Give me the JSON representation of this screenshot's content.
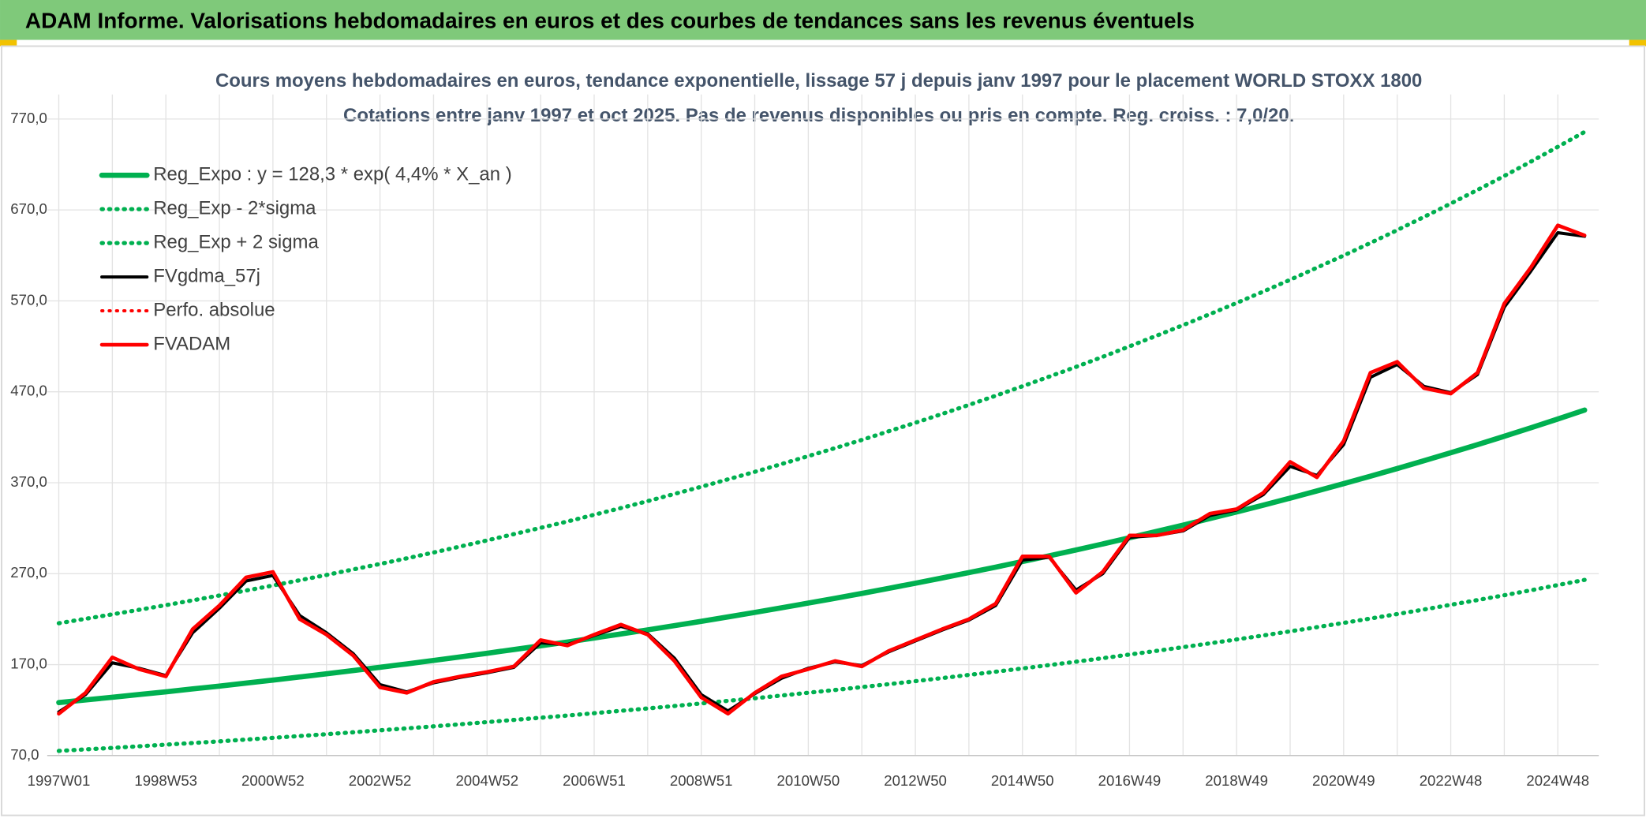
{
  "header": {
    "title": "ADAM Informe. Valorisations hebdomadaires en euros et des courbes de tendances sans les revenus éventuels"
  },
  "chart_data": {
    "type": "line",
    "title": "Cours moyens hebdomadaires en euros, tendance exponentielle, lissage 57 j depuis janv 1997 pour le placement WORLD STOXX 1800",
    "subtitle": "Cotations entre janv 1997 et oct 2025. Pas de revenus disponibles ou pris en compte. Reg. croiss. : 7,0/20.",
    "categories": [
      "1997W01",
      null,
      null,
      null,
      "1998W53",
      null,
      null,
      null,
      "2000W52",
      null,
      null,
      null,
      "2002W52",
      null,
      null,
      null,
      "2004W52",
      null,
      null,
      null,
      "2006W51",
      null,
      null,
      null,
      "2008W51",
      null,
      null,
      null,
      "2010W50",
      null,
      null,
      null,
      "2012W50",
      null,
      null,
      null,
      "2014W50",
      null,
      null,
      null,
      "2016W49",
      null,
      null,
      null,
      "2018W49",
      null,
      null,
      null,
      "2020W49",
      null,
      null,
      null,
      "2022W48",
      null,
      null,
      null,
      "2024W48",
      null
    ],
    "ylim": [
      70,
      797
    ],
    "yticks": [
      {
        "value": 70,
        "label": "70,0"
      },
      {
        "value": 170,
        "label": "170,0"
      },
      {
        "value": 270,
        "label": "270,0"
      },
      {
        "value": 370,
        "label": "370,0"
      },
      {
        "value": 470,
        "label": "470,0"
      },
      {
        "value": 570,
        "label": "570,0"
      },
      {
        "value": 670,
        "label": "670,0"
      },
      {
        "value": 770,
        "label": "770,0"
      }
    ],
    "grid": true,
    "legend": "upper left",
    "series": [
      {
        "name": "Reg_Expo : y = 128,3 * exp( 4,4% *  X_an )",
        "color": "#00b050",
        "dash": false,
        "values": [
          128.3,
          131.2,
          134.1,
          137.1,
          140.1,
          143.3,
          146.4,
          149.7,
          153.0,
          156.4,
          159.9,
          163.5,
          167.1,
          170.8,
          174.6,
          178.5,
          182.5,
          186.6,
          190.7,
          194.9,
          199.3,
          203.7,
          208.2,
          212.9,
          217.6,
          222.5,
          227.4,
          232.5,
          237.7,
          242.9,
          248.3,
          253.9,
          259.5,
          265.3,
          271.2,
          277.2,
          283.4,
          289.7,
          296.1,
          302.7,
          309.5,
          316.4,
          323.4,
          330.6,
          337.9,
          345.4,
          353.1,
          361.0,
          369.0,
          377.2,
          385.6,
          394.2,
          403.0,
          411.9,
          421.1,
          430.5,
          440.1,
          449.9
        ]
      },
      {
        "name": "Reg_Exp - 2*sigma",
        "color": "#00b050",
        "dash": true,
        "values": [
          75.1,
          76.8,
          78.4,
          80.2,
          82.0,
          83.8,
          85.6,
          87.6,
          89.5,
          91.5,
          93.5,
          95.6,
          97.8,
          99.9,
          102.1,
          104.4,
          106.8,
          109.2,
          111.6,
          114.0,
          116.6,
          119.2,
          121.8,
          124.5,
          127.3,
          130.2,
          133.0,
          136.0,
          139.1,
          142.1,
          145.3,
          148.5,
          151.8,
          155.2,
          158.7,
          162.2,
          165.8,
          169.5,
          173.2,
          177.1,
          181.1,
          185.1,
          189.2,
          193.4,
          197.7,
          202.1,
          206.6,
          211.2,
          215.9,
          220.7,
          225.6,
          230.6,
          235.8,
          241.0,
          246.3,
          251.8,
          257.5,
          263.2
        ]
      },
      {
        "name": "Reg_Exp + 2 sigma",
        "color": "#00b050",
        "dash": true,
        "values": [
          215.5,
          220.4,
          225.3,
          230.3,
          235.4,
          240.7,
          246.0,
          251.5,
          257.0,
          262.8,
          268.6,
          274.7,
          280.7,
          286.9,
          293.3,
          299.9,
          306.6,
          313.5,
          320.4,
          327.4,
          334.8,
          342.2,
          349.8,
          357.7,
          365.6,
          373.8,
          382.0,
          390.6,
          399.3,
          408.1,
          417.1,
          426.6,
          436.0,
          445.7,
          455.6,
          465.7,
          476.1,
          486.7,
          497.4,
          508.5,
          520.0,
          531.6,
          543.3,
          555.4,
          567.7,
          580.3,
          593.2,
          606.5,
          619.9,
          633.7,
          647.8,
          662.3,
          677.0,
          692.0,
          707.4,
          723.2,
          739.4,
          755.8
        ]
      },
      {
        "name": "FVgdma_57j",
        "color": "#000000",
        "dash": false,
        "values": [
          118,
          137,
          172,
          166,
          158,
          205,
          232,
          262,
          268,
          224,
          205,
          182,
          148,
          140,
          150,
          156,
          161,
          167,
          194,
          192,
          202,
          212,
          204,
          177,
          137,
          119,
          138,
          155,
          166,
          173,
          169,
          184,
          196,
          208,
          219,
          235,
          285,
          288,
          252,
          270,
          310,
          312,
          317,
          334,
          340,
          357,
          388,
          378,
          412,
          486,
          500,
          476,
          469,
          489,
          563,
          603,
          645,
          641
        ]
      },
      {
        "name": "Perfo. absolue",
        "color": "#ff0000",
        "dash": true,
        "values": [
          null,
          null,
          null,
          null,
          null,
          null,
          null,
          null,
          null,
          null,
          null,
          null,
          null,
          null,
          null,
          null,
          null,
          null,
          null,
          null,
          null,
          null,
          null,
          null,
          null,
          null,
          null,
          null,
          null,
          null,
          null,
          null,
          null,
          null,
          null,
          null,
          null,
          null,
          null,
          null,
          null,
          null,
          null,
          null,
          null,
          null,
          null,
          null,
          null,
          null,
          null,
          null,
          null,
          null,
          null,
          null,
          null,
          null
        ]
      },
      {
        "name": "FVADAM",
        "color": "#ff0000",
        "dash": false,
        "values": [
          116,
          139,
          178,
          165,
          157,
          209,
          235,
          266,
          272,
          220,
          203,
          180,
          145,
          139,
          151,
          157,
          162,
          168,
          197,
          191,
          203,
          214,
          203,
          174,
          134,
          116,
          139,
          157,
          165,
          174,
          168,
          185,
          197,
          209,
          220,
          237,
          289,
          289,
          249,
          272,
          312,
          312,
          318,
          336,
          341,
          359,
          393,
          376,
          416,
          491,
          503,
          474,
          468,
          491,
          567,
          607,
          653,
          642
        ]
      }
    ]
  }
}
